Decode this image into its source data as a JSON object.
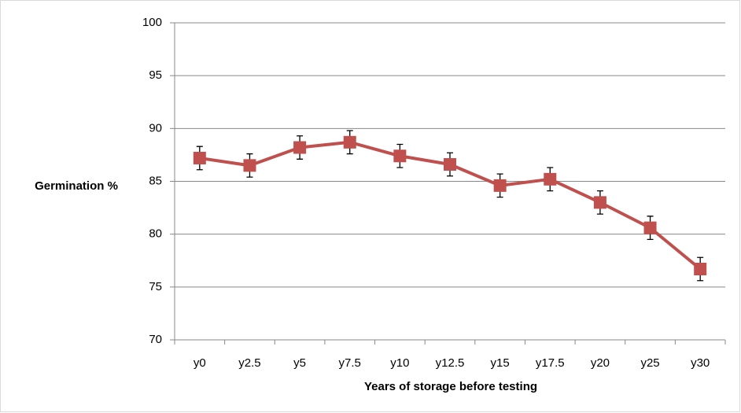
{
  "chart_data": {
    "type": "line",
    "y_label": "Germination %",
    "x_label": "Years of storage before testing",
    "categories": [
      "y0",
      "y2.5",
      "y5",
      "y7.5",
      "y10",
      "y12.5",
      "y15",
      "y17.5",
      "y20",
      "y25",
      "y30"
    ],
    "values": [
      87.2,
      86.5,
      88.2,
      88.7,
      87.4,
      86.6,
      84.6,
      85.2,
      83.0,
      80.6,
      76.7
    ],
    "errors": [
      1.1,
      1.1,
      1.1,
      1.1,
      1.1,
      1.1,
      1.1,
      1.1,
      1.1,
      1.1,
      1.1
    ],
    "color": "#c0504d",
    "ylim": [
      70,
      100
    ],
    "yticks": [
      70,
      75,
      80,
      85,
      90,
      95,
      100
    ],
    "grid": true
  }
}
